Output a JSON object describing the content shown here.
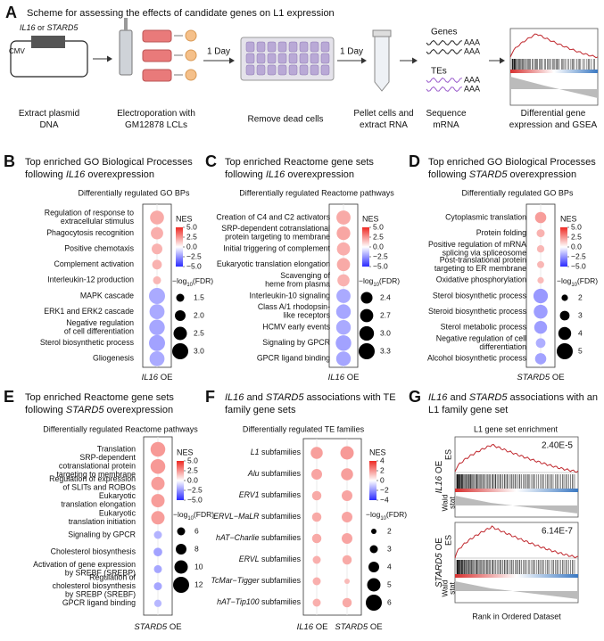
{
  "panel_a": {
    "letter": "A",
    "title": "Scheme for assessing the effects of candidate genes on L1 expression",
    "plasmid_insert": [
      {
        "text": "IL16",
        "italic": true
      },
      {
        "text": " or "
      },
      {
        "text": "STARD5",
        "italic": true
      }
    ],
    "promoter": "CMV",
    "step_1": [
      "Extract plasmid",
      "DNA"
    ],
    "step_2": [
      "Electroporation with",
      "GM12878 LCLs"
    ],
    "wait_1": "1 Day",
    "step_3": [
      "Remove dead cells"
    ],
    "wait_2": "1 Day",
    "step_4": [
      "Pellet cells and",
      "extract RNA"
    ],
    "genes": "Genes",
    "tes": "TEs",
    "polya_labels": [
      "AAA",
      "AAA",
      "AAA",
      "AAA"
    ],
    "step_5": [
      "Sequence",
      "mRNA"
    ],
    "step_6": [
      "Differential gene",
      "expression and GSEA"
    ]
  },
  "dot_panels": [
    {
      "letter": "B",
      "title": [
        "Top enriched GO Biological Processes",
        [
          {
            "text": "following "
          },
          {
            "text": "IL16",
            "italic": true
          },
          {
            "text": " overexpression"
          }
        ]
      ],
      "subtitle": "Differentially regulated GO BPs",
      "rows": [
        [
          "Regulation of response to",
          "extracellular stimulus"
        ],
        [
          "Phagocytosis recognition"
        ],
        [
          "Positive chemotaxis"
        ],
        [
          "Complement activation"
        ],
        [
          "Interleukin-12 production"
        ],
        [
          "MAPK cascade"
        ],
        [
          "ERK1 and ERK2 cascade"
        ],
        [
          "Negative regulation",
          "of cell differentiation"
        ],
        [
          "Sterol biosynthetic process"
        ],
        [
          "Gliogenesis"
        ]
      ],
      "columns": [
        [
          {
            "text": "IL16",
            "italic": true
          },
          {
            "text": " OE"
          }
        ]
      ],
      "nes": [
        [
          2.0
        ],
        [
          1.9
        ],
        [
          1.8
        ],
        [
          1.8
        ],
        [
          1.7
        ],
        [
          -2.0
        ],
        [
          -2.0
        ],
        [
          -2.1
        ],
        [
          -2.2
        ],
        [
          -2.0
        ]
      ],
      "neg_log10_fdr": [
        [
          2.6
        ],
        [
          2.3
        ],
        [
          2.0
        ],
        [
          1.8
        ],
        [
          1.5
        ],
        [
          3.0
        ],
        [
          2.8
        ],
        [
          2.9
        ],
        [
          3.0
        ],
        [
          2.8
        ]
      ],
      "nes_title": "NES",
      "nes_lim": [
        -5,
        5
      ],
      "nes_ticks": [
        {
          "value": 5,
          "label": "5.0"
        },
        2.5,
        {
          "value": 0,
          "label": "0.0"
        },
        {
          "value": -2.5,
          "label": "−2.5"
        },
        {
          "value": -5,
          "label": "−5.0"
        }
      ],
      "nes_colors": [
        "#2b2bff",
        "#ffffff",
        "#ee2a24"
      ],
      "size_title": [
        {
          "text": "−log"
        },
        {
          "text": "10",
          "sub": true
        },
        {
          "text": "(FDR)"
        }
      ],
      "size_ticks": [
        1.5,
        {
          "value": 2,
          "label": "2.0"
        },
        2.5,
        {
          "value": 3,
          "label": "3.0"
        }
      ]
    },
    {
      "letter": "C",
      "title": [
        "Top enriched Reactome gene sets",
        [
          {
            "text": "following "
          },
          {
            "text": "IL16",
            "italic": true
          },
          {
            "text": " overexpression"
          }
        ]
      ],
      "subtitle": "Differentially regulated Reactome pathways",
      "rows": [
        [
          "Creation of C4 and C2 activators"
        ],
        [
          "SRP-dependent cotranslational",
          "protein targeting to membrane"
        ],
        [
          "Initial triggering of complement"
        ],
        [
          "Eukaryotic translation elongation"
        ],
        [
          "Scavenging of",
          "heme from plasma"
        ],
        [
          "Interleukin-10 signaling"
        ],
        [
          "Class A/1 rhodopsin-",
          "like receptors"
        ],
        [
          "HCMV early events"
        ],
        [
          "Signaling by GPCR"
        ],
        [
          "GPCR ligand binding"
        ]
      ],
      "columns": [
        [
          {
            "text": "IL16",
            "italic": true
          },
          {
            "text": " OE"
          }
        ]
      ],
      "nes": [
        [
          2.0
        ],
        [
          2.1
        ],
        [
          1.9
        ],
        [
          2.0
        ],
        [
          1.8
        ],
        [
          -2.0
        ],
        [
          -2.1
        ],
        [
          -2.0
        ],
        [
          -2.2
        ],
        [
          -2.1
        ]
      ],
      "neg_log10_fdr": [
        [
          2.9
        ],
        [
          2.8
        ],
        [
          2.7
        ],
        [
          2.7
        ],
        [
          2.5
        ],
        [
          2.9
        ],
        [
          3.0
        ],
        [
          3.0
        ],
        [
          3.2
        ],
        [
          3.0
        ]
      ],
      "nes_title": "NES",
      "nes_lim": [
        -5,
        5
      ],
      "nes_ticks": [
        {
          "value": 5,
          "label": "5.0"
        },
        2.5,
        {
          "value": 0,
          "label": "0.0"
        },
        {
          "value": -2.5,
          "label": "−2.5"
        },
        {
          "value": -5,
          "label": "−5.0"
        }
      ],
      "nes_colors": [
        "#2b2bff",
        "#ffffff",
        "#ee2a24"
      ],
      "size_title": [
        {
          "text": "−log"
        },
        {
          "text": "10",
          "sub": true
        },
        {
          "text": "(FDR)"
        }
      ],
      "size_ticks": [
        2.4,
        2.7,
        {
          "value": 3,
          "label": "3.0"
        },
        3.3
      ]
    },
    {
      "letter": "D",
      "title": [
        "Top enriched GO Biological Processes",
        [
          {
            "text": "following "
          },
          {
            "text": "STARD5",
            "italic": true
          },
          {
            "text": " overexpression"
          }
        ]
      ],
      "subtitle": "Differentially regulated GO BPs",
      "rows": [
        [
          "Cytoplasmic translation"
        ],
        [
          "Protein folding"
        ],
        [
          "Positive regulation of mRNA",
          "splicing via spliceosome"
        ],
        [
          "Post-translational protein",
          "targeting to ER membrane"
        ],
        [
          "Oxidative phosphorylation"
        ],
        [
          "Sterol biosynthetic process"
        ],
        [
          "Steroid biosynthetic process"
        ],
        [
          "Sterol metabolic process"
        ],
        [
          "Negative regulation of cell",
          "differentiation"
        ],
        [
          "Alcohol biosynthetic process"
        ]
      ],
      "columns": [
        [
          {
            "text": "STARD5",
            "italic": true
          },
          {
            "text": " OE"
          }
        ]
      ],
      "nes": [
        [
          2.3
        ],
        [
          1.8
        ],
        [
          1.7
        ],
        [
          1.7
        ],
        [
          1.6
        ],
        [
          -2.4
        ],
        [
          -2.3
        ],
        [
          -2.3
        ],
        [
          -1.9
        ],
        [
          -2.2
        ]
      ],
      "neg_log10_fdr": [
        [
          3.5
        ],
        [
          2.5
        ],
        [
          2.3
        ],
        [
          2.2
        ],
        [
          2.0
        ],
        [
          4.5
        ],
        [
          4.3
        ],
        [
          4.0
        ],
        [
          3.0
        ],
        [
          3.5
        ]
      ],
      "nes_title": "NES",
      "nes_lim": [
        -5,
        5
      ],
      "nes_ticks": [
        {
          "value": 5,
          "label": "5.0"
        },
        2.5,
        {
          "value": 0,
          "label": "0.0"
        },
        {
          "value": -2.5,
          "label": "−2.5"
        },
        {
          "value": -5,
          "label": "−5.0"
        }
      ],
      "nes_colors": [
        "#2b2bff",
        "#ffffff",
        "#ee2a24"
      ],
      "size_title": [
        {
          "text": "−log"
        },
        {
          "text": "10",
          "sub": true
        },
        {
          "text": "(FDR)"
        }
      ],
      "size_ticks": [
        2,
        3,
        4,
        5
      ]
    },
    {
      "letter": "E",
      "title": [
        "Top enriched Reactome gene sets",
        [
          {
            "text": "following "
          },
          {
            "text": "STARD5",
            "italic": true
          },
          {
            "text": " overexpression"
          }
        ]
      ],
      "subtitle": "Differentially regulated Reactome pathways",
      "rows": [
        [
          "Translation"
        ],
        [
          "SRP-dependent",
          "cotranslational protein",
          "targeting to membrane"
        ],
        [
          "Regulation of expression",
          "of SLITs and ROBOs"
        ],
        [
          "Eukaryotic",
          "translation elongation"
        ],
        [
          "Eukaryotic",
          "translation initiation"
        ],
        [
          "Signaling by GPCR"
        ],
        [
          "Cholesterol biosynthesis"
        ],
        [
          "Activation of gene expression",
          "by SREBF (SREBP)"
        ],
        [
          "Regulation of",
          "cholesterol biosynthesis",
          "by SREBP (SREBF)"
        ],
        [
          "GPCR ligand binding"
        ]
      ],
      "columns": [
        [
          {
            "text": "STARD5",
            "italic": true
          },
          {
            "text": " OE"
          }
        ]
      ],
      "nes": [
        [
          2.4
        ],
        [
          2.4
        ],
        [
          2.3
        ],
        [
          2.3
        ],
        [
          2.3
        ],
        [
          -1.8
        ],
        [
          -2.2
        ],
        [
          -2.1
        ],
        [
          -2.1
        ],
        [
          -1.7
        ]
      ],
      "neg_log10_fdr": [
        [
          11
        ],
        [
          11
        ],
        [
          10
        ],
        [
          10
        ],
        [
          10
        ],
        [
          6
        ],
        [
          6.5
        ],
        [
          6
        ],
        [
          6
        ],
        [
          5.5
        ]
      ],
      "nes_title": "NES",
      "nes_lim": [
        -5,
        5
      ],
      "nes_ticks": [
        {
          "value": 5,
          "label": "5.0"
        },
        2.5,
        {
          "value": 0,
          "label": "0.0"
        },
        {
          "value": -2.5,
          "label": "−2.5"
        },
        {
          "value": -5,
          "label": "−5.0"
        }
      ],
      "nes_colors": [
        "#2b2bff",
        "#ffffff",
        "#ee2a24"
      ],
      "size_title": [
        {
          "text": "−log"
        },
        {
          "text": "10",
          "sub": true
        },
        {
          "text": "(FDR)"
        }
      ],
      "size_ticks": [
        6,
        8,
        10,
        12
      ]
    },
    {
      "letter": "F",
      "title": [
        [
          {
            "text": "IL16",
            "italic": true
          },
          {
            "text": " and "
          },
          {
            "text": "STARD5",
            "italic": true
          },
          {
            "text": " associations with TE"
          }
        ],
        "family gene sets"
      ],
      "subtitle": "Differentially regulated TE families",
      "rows": [
        [
          [
            {
              "text": "L1",
              "italic": true
            },
            {
              "text": " subfamilies"
            }
          ]
        ],
        [
          [
            {
              "text": "Alu",
              "italic": true
            },
            {
              "text": " subfamilies"
            }
          ]
        ],
        [
          [
            {
              "text": "ERV1",
              "italic": true
            },
            {
              "text": " subfamilies"
            }
          ]
        ],
        [
          [
            {
              "text": "ERVL−MaLR",
              "italic": true
            },
            {
              "text": " subfamilies"
            }
          ]
        ],
        [
          [
            {
              "text": "hAT−Charlie",
              "italic": true
            },
            {
              "text": " subfamilies"
            }
          ]
        ],
        [
          [
            {
              "text": "ERVL",
              "italic": true
            },
            {
              "text": " subfamilies"
            }
          ]
        ],
        [
          [
            {
              "text": "TcMar−Tigger",
              "italic": true
            },
            {
              "text": " subfamilies"
            }
          ]
        ],
        [
          [
            {
              "text": "hAT−Tip100",
              "italic": true
            },
            {
              "text": " subfamilies"
            }
          ]
        ]
      ],
      "columns": [
        [
          {
            "text": "IL16",
            "italic": true
          },
          {
            "text": " OE"
          }
        ],
        [
          {
            "text": "STARD5",
            "italic": true
          },
          {
            "text": " OE"
          }
        ]
      ],
      "nes": [
        [
          1.8,
          1.9
        ],
        [
          1.7,
          1.8
        ],
        [
          1.6,
          1.7
        ],
        [
          1.6,
          1.7
        ],
        [
          1.6,
          1.7
        ],
        [
          1.5,
          1.6
        ],
        [
          1.5,
          1.3
        ],
        [
          1.5,
          1.6
        ]
      ],
      "neg_log10_fdr": [
        [
          4.5,
          5
        ],
        [
          4,
          4.5
        ],
        [
          3.5,
          4
        ],
        [
          3.5,
          4
        ],
        [
          3.5,
          4
        ],
        [
          3,
          3.5
        ],
        [
          3,
          2
        ],
        [
          3,
          3.5
        ]
      ],
      "nes_title": "NES",
      "nes_lim": [
        -4,
        4
      ],
      "nes_ticks": [
        4,
        2,
        0,
        {
          "value": -2,
          "label": "−2"
        },
        {
          "value": -4,
          "label": "−4"
        }
      ],
      "nes_colors": [
        "#2b2bff",
        "#ffffff",
        "#ee2a24"
      ],
      "size_title": [
        {
          "text": "−log"
        },
        {
          "text": "10",
          "sub": true
        },
        {
          "text": "(FDR)"
        }
      ],
      "size_ticks": [
        2,
        3,
        4,
        5,
        6
      ]
    }
  ],
  "panel_g": {
    "letter": "G",
    "title": [
      [
        {
          "text": "IL16",
          "italic": true
        },
        {
          "text": " and "
        },
        {
          "text": "STARD5",
          "italic": true
        },
        {
          "text": " associations with an"
        }
      ],
      "L1 family gene set"
    ],
    "subtitle": "L1 gene set enrichment",
    "plots": [
      {
        "label": [
          {
            "text": "IL16",
            "italic": true
          },
          {
            "text": " OE"
          }
        ],
        "pvalue": "2.40E-5",
        "es": "ES",
        "wald": [
          "Wald",
          "stat"
        ]
      },
      {
        "label": [
          {
            "text": "STARD5",
            "italic": true
          },
          {
            "text": " OE"
          }
        ],
        "pvalue": "6.14E-7",
        "es": "ES",
        "wald": [
          "Wald",
          "stat"
        ]
      }
    ],
    "xlabel": "Rank in Ordered Dataset"
  }
}
